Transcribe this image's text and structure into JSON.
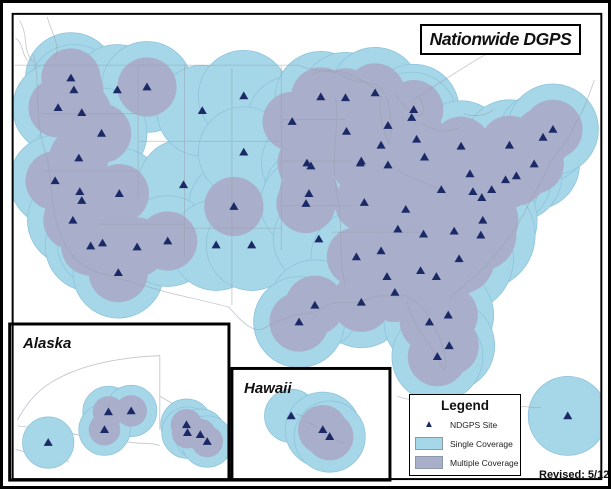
{
  "title": "Nationwide DGPS",
  "revised_label": "Revised: 5/12",
  "insets": {
    "alaska": {
      "label": "Alaska"
    },
    "hawaii": {
      "label": "Hawaii"
    }
  },
  "legend": {
    "heading": "Legend",
    "items": [
      {
        "marker": "site-triangle-icon",
        "label": "NDGPS Site"
      },
      {
        "marker": "single-coverage-swatch",
        "label": "Single Coverage"
      },
      {
        "marker": "multiple-coverage-swatch",
        "label": "Multiple Coverage"
      }
    ]
  },
  "colors": {
    "single": "#a5d7e9",
    "multiple": "#a9aecb",
    "site": "#1b2a66",
    "line": "#99a0ac"
  },
  "coverage": {
    "main": {
      "r_single": 46,
      "r_multi": 30,
      "sites": [
        [
          68,
          76,
          1
        ],
        [
          71,
          88,
          1
        ],
        [
          55,
          106,
          1
        ],
        [
          79,
          111,
          1
        ],
        [
          115,
          88,
          0
        ],
        [
          145,
          85,
          1
        ],
        [
          99,
          132,
          1
        ],
        [
          76,
          157,
          1
        ],
        [
          52,
          180,
          1
        ],
        [
          77,
          191,
          1
        ],
        [
          79,
          200,
          1
        ],
        [
          70,
          220,
          1
        ],
        [
          88,
          246,
          1
        ],
        [
          100,
          243,
          1
        ],
        [
          135,
          247,
          1
        ],
        [
          116,
          273,
          1
        ],
        [
          117,
          193,
          1
        ],
        [
          182,
          184,
          0
        ],
        [
          201,
          109,
          0
        ],
        [
          233,
          206,
          1
        ],
        [
          166,
          241,
          1
        ],
        [
          215,
          245,
          0
        ],
        [
          251,
          245,
          0
        ],
        [
          243,
          94,
          0
        ],
        [
          292,
          120,
          1
        ],
        [
          243,
          151,
          0
        ],
        [
          311,
          165,
          0
        ],
        [
          362,
          160,
          1
        ],
        [
          347,
          130,
          1
        ],
        [
          321,
          95,
          1
        ],
        [
          346,
          96,
          1
        ],
        [
          376,
          91,
          1
        ],
        [
          415,
          108,
          1
        ],
        [
          413,
          116,
          1
        ],
        [
          389,
          124,
          1
        ],
        [
          382,
          144,
          1
        ],
        [
          418,
          138,
          1
        ],
        [
          426,
          156,
          1
        ],
        [
          361,
          162,
          1
        ],
        [
          307,
          162,
          1
        ],
        [
          463,
          145,
          1
        ],
        [
          512,
          144,
          1
        ],
        [
          537,
          163,
          1
        ],
        [
          546,
          136,
          1
        ],
        [
          556,
          128,
          1
        ],
        [
          519,
          175,
          1
        ],
        [
          508,
          179,
          1
        ],
        [
          472,
          173,
          1
        ],
        [
          475,
          191,
          1
        ],
        [
          484,
          197,
          1
        ],
        [
          494,
          189,
          1
        ],
        [
          443,
          189,
          1
        ],
        [
          485,
          220,
          1,
          55
        ],
        [
          456,
          231,
          1
        ],
        [
          483,
          235,
          1,
          55
        ],
        [
          389,
          164,
          1
        ],
        [
          309,
          193,
          1
        ],
        [
          306,
          203,
          1
        ],
        [
          365,
          202,
          1
        ],
        [
          407,
          209,
          1
        ],
        [
          399,
          229,
          1
        ],
        [
          425,
          234,
          1
        ],
        [
          319,
          239,
          0
        ],
        [
          382,
          251,
          1
        ],
        [
          357,
          257,
          1
        ],
        [
          461,
          259,
          1,
          55
        ],
        [
          422,
          271,
          1
        ],
        [
          438,
          277,
          1
        ],
        [
          388,
          277,
          1
        ],
        [
          396,
          293,
          1
        ],
        [
          362,
          303,
          1
        ],
        [
          315,
          306,
          1
        ],
        [
          450,
          316,
          1
        ],
        [
          431,
          323,
          1
        ],
        [
          299,
          323,
          1
        ],
        [
          451,
          347,
          1
        ],
        [
          439,
          358,
          1
        ],
        [
          571,
          418,
          0,
          40
        ]
      ]
    },
    "alaska": {
      "r_single": 26,
      "r_multi": 16,
      "sites": [
        [
          45,
          445,
          0
        ],
        [
          106,
          414,
          1
        ],
        [
          129,
          413,
          1
        ],
        [
          102,
          432,
          1
        ],
        [
          185,
          427,
          1
        ],
        [
          186,
          435,
          1
        ],
        [
          199,
          437,
          1
        ],
        [
          206,
          444,
          1
        ]
      ]
    },
    "hawaii": {
      "r_single": 36,
      "r_multi": 24,
      "sites": [
        [
          291,
          418,
          0,
          27
        ],
        [
          323,
          432,
          1,
          38
        ],
        [
          330,
          439,
          1,
          36
        ]
      ]
    }
  }
}
